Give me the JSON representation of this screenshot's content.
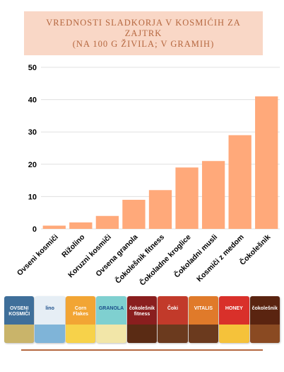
{
  "title": {
    "line1": "VREDNOSTI SLADKORJA V KOSMIĆIH ZA",
    "line2": "ZAJTRK",
    "line3": "(NA 100 G ŽIVILA; V GRAMIH)"
  },
  "colors": {
    "bar": "#ffa97a",
    "title_bg": "#f9d7c6",
    "title_text": "#b5673f",
    "grid": "#e0e0e0"
  },
  "chart_data": {
    "type": "bar",
    "categories": [
      "Ovseni kosmiči",
      "Rižolino",
      "Koruzni kosmiči",
      "Ovsena granola",
      "Čokolešnik fitness",
      "Čokoladne kroglice",
      "Čokoladni musli",
      "Kosmiči z medom",
      "Čokolešnik"
    ],
    "values": [
      1,
      2,
      4,
      9,
      12,
      19,
      21,
      29,
      41
    ],
    "ylim": [
      0,
      50
    ],
    "yticks": [
      0,
      10,
      20,
      30,
      40,
      50
    ],
    "grid": true,
    "xlabel": "",
    "ylabel": ""
  },
  "products": [
    {
      "name": "ovseni-kosmici-package",
      "label": "OVSENI KOSMIČI",
      "color": "#3f6f9a",
      "band": "#c9b46a"
    },
    {
      "name": "rizolino-package",
      "label": "lino",
      "color": "#e6eef5",
      "band": "#7fb4d8"
    },
    {
      "name": "koruzni-kosmici-package",
      "label": "Corn Flakes",
      "color": "#f2a534",
      "band": "#f7d24a"
    },
    {
      "name": "ovsena-granola-package",
      "label": "GRANOLA",
      "color": "#7fd0d0",
      "band": "#f2e6a8"
    },
    {
      "name": "cokolesnik-fitness-package",
      "label": "čokolešnik fitness",
      "color": "#8a1e1e",
      "band": "#5a2b14"
    },
    {
      "name": "cokoladne-kroglice-package",
      "label": "Čoki",
      "color": "#c23a2a",
      "band": "#6b3a1e"
    },
    {
      "name": "cokoladni-musli-package",
      "label": "VITALIS",
      "color": "#e07a2a",
      "band": "#6b3a1e"
    },
    {
      "name": "kosmici-z-medom-package",
      "label": "HONEY",
      "color": "#d9302a",
      "band": "#f5c23a"
    },
    {
      "name": "cokolesnik-package",
      "label": "čokolešnik",
      "color": "#5a2410",
      "band": "#8a4a22"
    }
  ]
}
